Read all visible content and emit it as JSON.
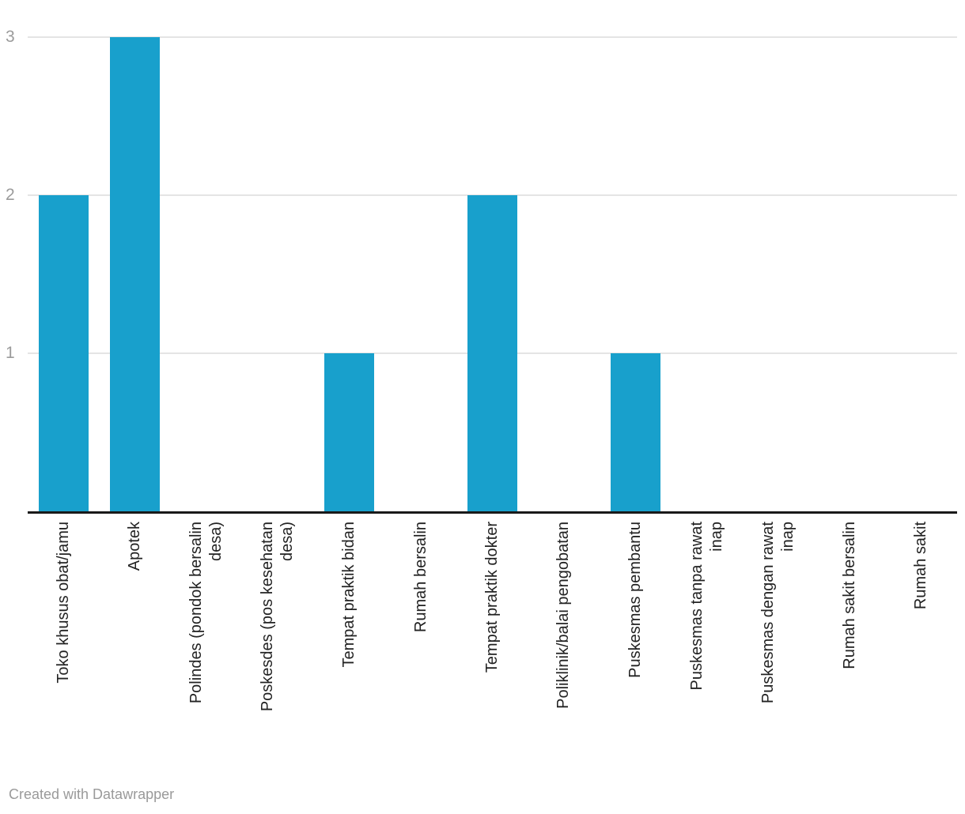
{
  "chart_data": {
    "type": "bar",
    "title": "",
    "xlabel": "",
    "ylabel": "",
    "categories": [
      "Toko khusus obat/jamu",
      "Apotek",
      "Polindes (pondok bersalin desa)",
      "Poskesdes (pos kesehatan desa)",
      "Tempat praktik bidan",
      "Rumah bersalin",
      "Tempat praktik dokter",
      "Poliklinik/balai pengobatan",
      "Puskesmas pembantu",
      "Puskesmas tanpa rawat inap",
      "Puskesmas dengan rawat inap",
      "Rumah sakit bersalin",
      "Rumah sakit"
    ],
    "label_lines": [
      [
        "Toko khusus obat/jamu"
      ],
      [
        "Apotek"
      ],
      [
        "Polindes (pondok bersalin",
        "desa)"
      ],
      [
        "Poskesdes (pos kesehatan",
        "desa)"
      ],
      [
        "Tempat praktik bidan"
      ],
      [
        "Rumah bersalin"
      ],
      [
        "Tempat praktik dokter"
      ],
      [
        "Poliklinik/balai pengobatan"
      ],
      [
        "Puskesmas pembantu"
      ],
      [
        "Puskesmas tanpa rawat",
        "inap"
      ],
      [
        "Puskesmas dengan rawat",
        "inap"
      ],
      [
        "Rumah sakit bersalin"
      ],
      [
        "Rumah sakit"
      ]
    ],
    "values": [
      2,
      3,
      0,
      0,
      1,
      0,
      2,
      0,
      1,
      0,
      0,
      0,
      0
    ],
    "yticks": [
      1,
      2,
      3
    ],
    "ylim": [
      0,
      3
    ],
    "grid": "horizontal",
    "legend": "none"
  },
  "colors": {
    "bar": "#18a0cc",
    "gridline": "#e4e4e4",
    "axis_line": "#1a1a1a",
    "ytick_label": "#9b9b9b",
    "xtick_label": "#222222",
    "footer_text": "#9a9a9a"
  },
  "footer": {
    "credit": "Created with Datawrapper"
  }
}
